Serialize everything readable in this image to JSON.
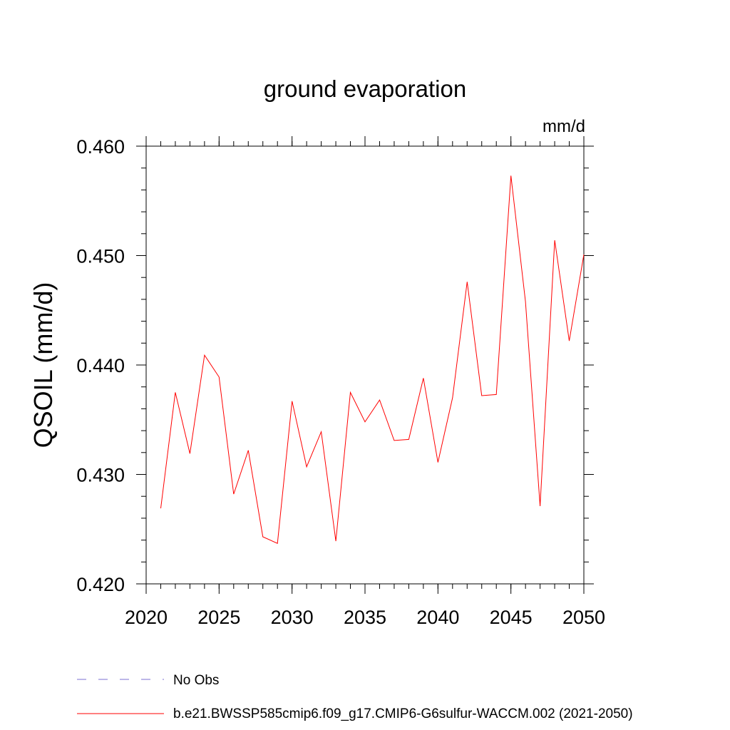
{
  "chart_data": {
    "type": "line",
    "title": "ground evaporation",
    "units": "mm/d",
    "ylabel": "QSOIL  (mm/d)",
    "xlabel": "",
    "xlim": [
      2020,
      2050
    ],
    "ylim": [
      0.42,
      0.46
    ],
    "x_ticks": [
      2020,
      2025,
      2030,
      2035,
      2040,
      2045,
      2050
    ],
    "x_tick_labels": [
      "2020",
      "2025",
      "2030",
      "2035",
      "2040",
      "2045",
      "2050"
    ],
    "y_ticks": [
      0.42,
      0.43,
      0.44,
      0.45,
      0.46
    ],
    "y_tick_labels": [
      "0.420",
      "0.430",
      "0.440",
      "0.450",
      "0.460"
    ],
    "grid": false,
    "legend_position": "bottom",
    "series": [
      {
        "name": "b.e21.BWSSP585cmip6.f09_g17.CMIP6-G6sulfur-WACCM.002 (2021-2050)",
        "color": "#ff0000",
        "style": "solid",
        "x": [
          2021,
          2022,
          2023,
          2024,
          2025,
          2026,
          2027,
          2028,
          2029,
          2030,
          2031,
          2032,
          2033,
          2034,
          2035,
          2036,
          2037,
          2038,
          2039,
          2040,
          2041,
          2042,
          2043,
          2044,
          2045,
          2046,
          2047,
          2048,
          2049,
          2050
        ],
        "y": [
          0.4269,
          0.4375,
          0.4319,
          0.4409,
          0.4389,
          0.4282,
          0.4322,
          0.4243,
          0.4237,
          0.4367,
          0.4307,
          0.4339,
          0.4239,
          0.4375,
          0.4348,
          0.4368,
          0.4331,
          0.4332,
          0.4388,
          0.4311,
          0.437,
          0.4476,
          0.4372,
          0.4373,
          0.4573,
          0.4458,
          0.4271,
          0.4514,
          0.4422,
          0.4501
        ]
      }
    ],
    "legend": [
      {
        "label": "No Obs",
        "color": "#7b6fd0",
        "style": "dashed"
      },
      {
        "label": "b.e21.BWSSP585cmip6.f09_g17.CMIP6-G6sulfur-WACCM.002 (2021-2050)",
        "color": "#ff0000",
        "style": "solid"
      }
    ]
  }
}
